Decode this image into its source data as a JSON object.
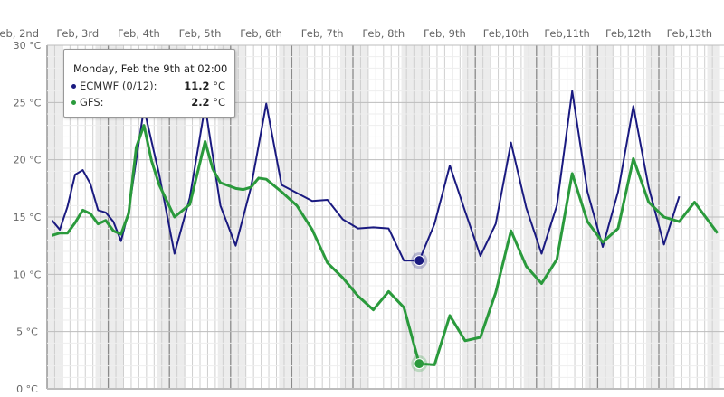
{
  "chart_data": {
    "type": "line",
    "title": "",
    "xlabel": "",
    "ylabel": "",
    "ylim": [
      0,
      30
    ],
    "yticks": [
      "0 °C",
      "5 °C",
      "10 °C",
      "15 °C",
      "20 °C",
      "25 °C",
      "30 °C"
    ],
    "x_day_labels": [
      "Feb, 2nd",
      "Feb, 3rd",
      "Feb, 4th",
      "Feb, 5th",
      "Feb, 6th",
      "Feb, 7th",
      "Feb, 8th",
      "Feb, 9th",
      "Feb,10th",
      "Feb,11th",
      "Feb,12th",
      "Feb,13th"
    ],
    "grid": true,
    "night_shading": true,
    "series": [
      {
        "name": "ECMWF (0/12)",
        "color": "#1a1a80",
        "times": [
          "Feb 2 23:00",
          "Feb 3 02:00",
          "Feb 3 05:00",
          "Feb 3 08:00",
          "Feb 3 11:00",
          "Feb 3 14:00",
          "Feb 3 17:00",
          "Feb 3 20:00",
          "Feb 3 23:00",
          "Feb 4 02:00",
          "Feb 4 05:00",
          "Feb 4 08:00",
          "Feb 4 14:00",
          "Feb 4 20:00",
          "Feb 5 02:00",
          "Feb 5 08:00",
          "Feb 5 14:00",
          "Feb 5 20:00",
          "Feb 6 02:00",
          "Feb 6 08:00",
          "Feb 6 14:00",
          "Feb 6 20:00",
          "Feb 7 02:00",
          "Feb 7 08:00",
          "Feb 7 14:00",
          "Feb 7 20:00",
          "Feb 8 02:00",
          "Feb 8 08:00",
          "Feb 8 14:00",
          "Feb 8 20:00",
          "Feb 9 02:00",
          "Feb 9 08:00",
          "Feb 9 14:00",
          "Feb 9 20:00",
          "Feb 10 02:00",
          "Feb 10 08:00",
          "Feb 10 14:00",
          "Feb 10 20:00",
          "Feb 11 02:00",
          "Feb 11 08:00",
          "Feb 11 14:00",
          "Feb 11 20:00",
          "Feb 12 02:00",
          "Feb 12 08:00",
          "Feb 12 14:00",
          "Feb 12 20:00",
          "Feb 13 02:00",
          "Feb 13 08:00"
        ],
        "values": [
          15.2,
          14.7,
          13.9,
          15.9,
          18.7,
          19.1,
          17.9,
          15.6,
          15.4,
          14.6,
          12.9,
          15.5,
          24.5,
          18.7,
          11.8,
          16.7,
          24.7,
          16.0,
          12.5,
          17.6,
          24.9,
          17.8,
          17.1,
          16.4,
          16.5,
          14.8,
          14.0,
          14.1,
          14.0,
          11.2,
          11.2,
          14.4,
          19.5,
          15.5,
          11.6,
          14.4,
          21.5,
          15.8,
          11.8,
          16.0,
          26.0,
          17.2,
          12.4,
          17.2,
          24.7,
          17.6,
          12.6,
          16.8
        ]
      },
      {
        "name": "GFS",
        "color": "#2a9a3c",
        "times": [
          "Feb 2 23:00",
          "Feb 3 02:00",
          "Feb 3 05:00",
          "Feb 3 08:00",
          "Feb 3 11:00",
          "Feb 3 14:00",
          "Feb 3 17:00",
          "Feb 3 20:00",
          "Feb 3 23:00",
          "Feb 4 02:00",
          "Feb 4 05:00",
          "Feb 4 08:00",
          "Feb 4 11:00",
          "Feb 4 14:00",
          "Feb 4 17:00",
          "Feb 4 20:00",
          "Feb 5 02:00",
          "Feb 5 08:00",
          "Feb 5 14:00",
          "Feb 5 17:00",
          "Feb 5 20:00",
          "Feb 6 02:00",
          "Feb 6 05:00",
          "Feb 6 08:00",
          "Feb 6 11:00",
          "Feb 6 14:00",
          "Feb 6 20:00",
          "Feb 7 02:00",
          "Feb 7 08:00",
          "Feb 7 14:00",
          "Feb 7 20:00",
          "Feb 7 23:00",
          "Feb 8 02:00",
          "Feb 8 08:00",
          "Feb 8 14:00",
          "Feb 8 20:00",
          "Feb 9 02:00",
          "Feb 9 08:00",
          "Feb 9 14:00",
          "Feb 9 20:00",
          "Feb 10 02:00",
          "Feb 10 08:00",
          "Feb 10 14:00",
          "Feb 10 20:00",
          "Feb 11 02:00",
          "Feb 11 08:00",
          "Feb 11 14:00",
          "Feb 11 20:00",
          "Feb 12 02:00",
          "Feb 12 08:00",
          "Feb 12 14:00",
          "Feb 12 20:00",
          "Feb 13 02:00",
          "Feb 13 08:00",
          "Feb 13 14:00",
          "Feb 13 23:00"
        ],
        "values": [
          13.4,
          13.4,
          13.6,
          13.6,
          14.5,
          15.6,
          15.3,
          14.4,
          14.7,
          13.8,
          13.5,
          15.3,
          21.1,
          23.0,
          19.9,
          17.8,
          15.0,
          16.1,
          21.6,
          19.2,
          18.0,
          17.5,
          17.4,
          17.6,
          18.4,
          18.3,
          17.2,
          16.0,
          13.9,
          11.0,
          9.7,
          8.9,
          8.1,
          6.9,
          8.5,
          7.1,
          2.2,
          2.1,
          6.4,
          4.2,
          4.5,
          8.4,
          13.8,
          10.7,
          9.2,
          11.3,
          18.8,
          14.6,
          12.8,
          14.0,
          20.1,
          16.3,
          15.0,
          14.6,
          16.3,
          13.6
        ]
      }
    ],
    "highlight_time": "Feb 9 02:00"
  },
  "tooltip": {
    "title": "Monday, Feb the 9th at 02:00",
    "rows": [
      {
        "label": "ECMWF (0/12):",
        "value": "11.2",
        "unit": "°C",
        "color": "#1a1a80"
      },
      {
        "label": "GFS:",
        "value": "2.2",
        "unit": "°C",
        "color": "#2a9a3c"
      }
    ]
  }
}
